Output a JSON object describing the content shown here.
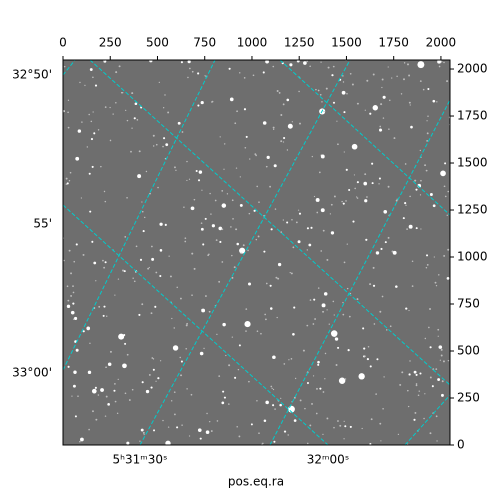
{
  "chart_data": {
    "type": "image",
    "xlabel": "pos.eq.ra",
    "xlim": [
      0,
      2048
    ],
    "xticks": [
      0,
      250,
      500,
      750,
      1000,
      1250,
      1500,
      1750,
      2000
    ],
    "ylim": [
      0,
      2048
    ],
    "yticks": [
      0,
      250,
      500,
      750,
      1000,
      1250,
      1500,
      1750,
      2000
    ],
    "world_y_labels": [
      "32°50'",
      "55'",
      "33°00'"
    ],
    "world_x_labels": [
      "5ʰ31ᵐ30ˢ",
      "32ᵐ00ˢ"
    ],
    "grid_color": "#00cccc"
  }
}
